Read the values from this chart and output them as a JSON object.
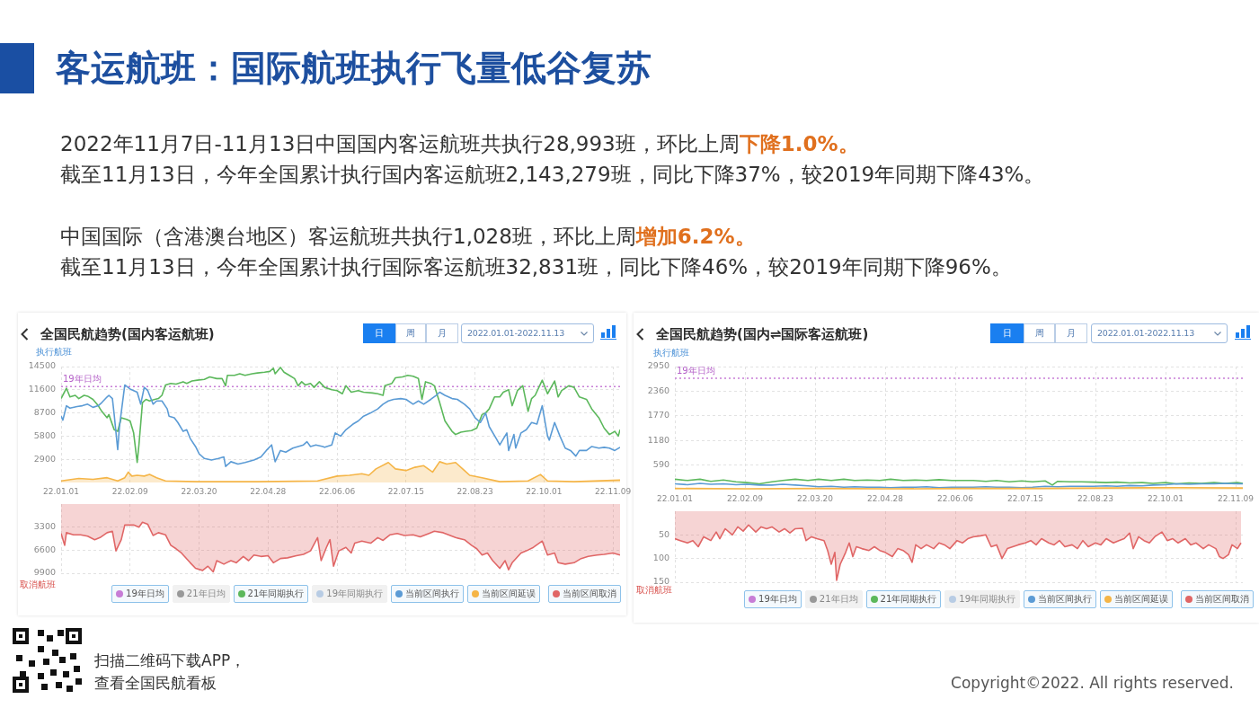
{
  "chart_data": [
    {
      "type": "other",
      "title": "客运航班：国际航班执行飞量低谷复苏",
      "annotations": [
        "2022年11月7日-11月13日中国国内客运航班共执行28,993班，环比上周",
        "下降1.0%。",
        "截至11月13日，今年全国累计执行国内客运航班2,143,279班，同比下降37%，较2019年同期下降43%。",
        "中国国际（含港澳台地区）客运航班共执行1,028班，环比上周",
        "增加6.2%。",
        "截至11月13日，今年全国累计执行国际客运航班32,831班，同比下降46%，较2019年同期下降96%。",
        "扫描二维码下载APP，",
        "查看全国民航看板",
        "Copyright©2022. All rights reserved."
      ]
    },
    {
      "type": "line",
      "title": "全国民航趋势(国内客运航班)",
      "ylabel": "执行航班",
      "annotations": [
        "日",
        "周",
        "月",
        "2022.01.01-2022.11.13",
        {
          "text": "19年日均",
          "x": "2022-01-02",
          "y": 12000
        }
      ],
      "xlim": [
        "2022-01-01",
        "2022-11-13"
      ],
      "xticks": [
        {
          "value": "2022-01-01",
          "label": "22.01.01"
        },
        {
          "value": "2022-02-09",
          "label": "22.02.09"
        },
        {
          "value": "2022-03-20",
          "label": "22.03.20"
        },
        {
          "value": "2022-04-28",
          "label": "22.04.28"
        },
        {
          "value": "2022-06-06",
          "label": "22.06.06"
        },
        {
          "value": "2022-07-15",
          "label": "22.07.15"
        },
        {
          "value": "2022-08-23",
          "label": "22.08.23"
        },
        {
          "value": "2022-10-01",
          "label": "22.10.01"
        },
        {
          "value": "2022-11-09",
          "label": "22.11.09"
        }
      ],
      "ylim": [
        0,
        14500
      ],
      "yticks": [
        2900,
        5800,
        8700,
        11600,
        14500
      ],
      "grid": true,
      "legend": "bottom right",
      "series": [
        {
          "name": "19年日均",
          "type": "line",
          "color": "#c77dd6",
          "line_style": "dotted",
          "x": [
            "2022-01-01",
            "2022-11-13"
          ],
          "values": [
            12000,
            12000
          ]
        },
        {
          "name": "21年日均",
          "type": "line",
          "color": "#999999"
        },
        {
          "name": "21年同期执行",
          "type": "line",
          "color": "#5cb85c",
          "x": [
            "2022-01-01",
            "2022-01-04",
            "2022-01-06",
            "2022-01-09",
            "2022-01-11",
            "2022-01-14",
            "2022-01-16",
            "2022-01-19",
            "2022-01-22",
            "2022-01-24",
            "2022-01-27",
            "2022-01-28",
            "2022-01-31",
            "2022-02-02",
            "2022-02-04",
            "2022-02-07",
            "2022-02-09",
            "2022-02-11",
            "2022-02-13",
            "2022-02-14",
            "2022-02-16",
            "2022-02-18",
            "2022-02-20",
            "2022-02-23",
            "2022-02-25",
            "2022-02-27",
            "2022-03-01",
            "2022-03-04",
            "2022-03-07",
            "2022-03-11",
            "2022-03-13",
            "2022-03-16",
            "2022-03-19",
            "2022-03-23",
            "2022-03-26",
            "2022-03-30",
            "2022-04-02",
            "2022-04-04",
            "2022-04-05",
            "2022-04-09",
            "2022-04-12",
            "2022-04-15",
            "2022-04-19",
            "2022-04-22",
            "2022-04-26",
            "2022-04-29",
            "2022-05-01",
            "2022-05-02",
            "2022-05-05",
            "2022-05-07",
            "2022-05-10",
            "2022-05-13",
            "2022-05-15",
            "2022-05-17",
            "2022-05-19",
            "2022-05-22",
            "2022-05-24",
            "2022-05-27",
            "2022-05-30",
            "2022-06-03",
            "2022-06-06",
            "2022-06-09",
            "2022-06-11",
            "2022-06-14",
            "2022-06-18",
            "2022-06-21",
            "2022-06-26",
            "2022-06-29",
            "2022-07-02",
            "2022-07-03",
            "2022-07-07",
            "2022-07-09",
            "2022-07-13",
            "2022-07-16",
            "2022-07-19",
            "2022-07-22",
            "2022-07-24",
            "2022-07-26",
            "2022-07-29",
            "2022-07-31",
            "2022-08-03",
            "2022-08-06",
            "2022-08-10",
            "2022-08-12",
            "2022-08-15",
            "2022-08-18",
            "2022-08-21",
            "2022-08-24",
            "2022-08-27",
            "2022-08-29",
            "2022-08-31",
            "2022-09-03",
            "2022-09-06",
            "2022-09-08",
            "2022-09-11",
            "2022-09-13",
            "2022-09-16",
            "2022-09-19",
            "2022-09-22",
            "2022-09-24",
            "2022-09-26",
            "2022-09-30",
            "2022-10-03",
            "2022-10-07",
            "2022-10-09",
            "2022-10-11",
            "2022-10-15",
            "2022-10-18",
            "2022-10-21",
            "2022-10-25",
            "2022-10-28",
            "2022-11-01",
            "2022-11-04",
            "2022-11-07",
            "2022-11-10",
            "2022-11-12",
            "2022-11-13"
          ],
          "values": [
            10500,
            11800,
            10700,
            10900,
            10500,
            10900,
            10800,
            10400,
            9600,
            8900,
            8100,
            8500,
            6600,
            6400,
            8100,
            7900,
            7700,
            6200,
            2500,
            4700,
            10000,
            10400,
            10200,
            10400,
            10500,
            10900,
            12200,
            12400,
            12300,
            12600,
            12400,
            12700,
            12800,
            12900,
            13200,
            13000,
            13000,
            12100,
            13400,
            13400,
            13600,
            13400,
            13600,
            13700,
            13800,
            13900,
            14300,
            13600,
            14400,
            13800,
            13400,
            13000,
            12100,
            12600,
            12200,
            12400,
            11900,
            12600,
            11900,
            11600,
            11500,
            11100,
            12100,
            11300,
            11500,
            11300,
            11200,
            11100,
            10900,
            12100,
            12400,
            13100,
            13200,
            13400,
            13300,
            13000,
            10400,
            12600,
            12400,
            12100,
            10000,
            7700,
            6400,
            6000,
            6300,
            6400,
            6500,
            6800,
            8500,
            8700,
            9200,
            10700,
            10700,
            11300,
            11600,
            9600,
            11500,
            12100,
            8900,
            10500,
            10900,
            12800,
            11100,
            12700,
            10700,
            11500,
            12100,
            11900,
            10700,
            10400,
            9200,
            8100,
            6800,
            6000,
            6400,
            5800,
            6600
          ]
        },
        {
          "name": "19年同期执行",
          "type": "line",
          "color": "#b8cce4"
        },
        {
          "name": "当前区间执行",
          "type": "line",
          "color": "#5b9bd5",
          "x": [
            "2022-01-01",
            "2022-01-02",
            "2022-01-04",
            "2022-01-06",
            "2022-01-10",
            "2022-01-13",
            "2022-01-16",
            "2022-01-19",
            "2022-01-22",
            "2022-01-24",
            "2022-01-27",
            "2022-01-28",
            "2022-01-30",
            "2022-01-31",
            "2022-02-02",
            "2022-02-03",
            "2022-02-06",
            "2022-02-09",
            "2022-02-13",
            "2022-02-15",
            "2022-02-17",
            "2022-02-19",
            "2022-02-22",
            "2022-02-24",
            "2022-02-27",
            "2022-03-02",
            "2022-03-03",
            "2022-03-06",
            "2022-03-08",
            "2022-03-11",
            "2022-03-13",
            "2022-03-15",
            "2022-03-18",
            "2022-03-20",
            "2022-03-23",
            "2022-03-27",
            "2022-03-31",
            "2022-04-03",
            "2022-04-04",
            "2022-04-07",
            "2022-04-11",
            "2022-04-15",
            "2022-04-20",
            "2022-04-24",
            "2022-04-27",
            "2022-04-30",
            "2022-05-02",
            "2022-05-05",
            "2022-05-08",
            "2022-05-12",
            "2022-05-15",
            "2022-05-18",
            "2022-05-20",
            "2022-05-22",
            "2022-05-25",
            "2022-05-29",
            "2022-05-30",
            "2022-06-03",
            "2022-06-05",
            "2022-06-08",
            "2022-06-11",
            "2022-06-15",
            "2022-06-18",
            "2022-06-21",
            "2022-06-25",
            "2022-06-29",
            "2022-07-02",
            "2022-07-05",
            "2022-07-08",
            "2022-07-12",
            "2022-07-15",
            "2022-07-19",
            "2022-07-22",
            "2022-07-25",
            "2022-07-29",
            "2022-08-01",
            "2022-08-03",
            "2022-08-06",
            "2022-08-10",
            "2022-08-13",
            "2022-08-17",
            "2022-08-20",
            "2022-08-23",
            "2022-08-26",
            "2022-08-29",
            "2022-08-31",
            "2022-09-04",
            "2022-09-06",
            "2022-09-10",
            "2022-09-11",
            "2022-09-14",
            "2022-09-15",
            "2022-09-18",
            "2022-09-21",
            "2022-09-24",
            "2022-09-27",
            "2022-09-30",
            "2022-10-03",
            "2022-10-04",
            "2022-10-07",
            "2022-10-10",
            "2022-10-13",
            "2022-10-16",
            "2022-10-19",
            "2022-10-21",
            "2022-10-25",
            "2022-10-28",
            "2022-11-01",
            "2022-11-04",
            "2022-11-07",
            "2022-11-10",
            "2022-11-13"
          ],
          "values": [
            8300,
            7800,
            9600,
            9300,
            9500,
            9600,
            9800,
            9400,
            9600,
            10000,
            10700,
            10900,
            10500,
            8500,
            4100,
            7000,
            12200,
            11700,
            11300,
            9800,
            11900,
            11500,
            9800,
            10200,
            10200,
            9200,
            8300,
            8100,
            7500,
            6400,
            6600,
            5500,
            4500,
            3600,
            3000,
            2800,
            3000,
            3200,
            2000,
            2600,
            2300,
            2500,
            2800,
            3200,
            4000,
            4700,
            2600,
            4000,
            3800,
            4300,
            4500,
            4700,
            5100,
            4500,
            4700,
            4500,
            4400,
            4700,
            6200,
            5800,
            6600,
            7300,
            7700,
            8300,
            8700,
            9200,
            9800,
            10200,
            10400,
            10500,
            10400,
            9800,
            10200,
            9800,
            10400,
            10900,
            11300,
            10900,
            10500,
            10400,
            9800,
            9200,
            8100,
            7500,
            8700,
            7000,
            5500,
            4700,
            6200,
            4000,
            6000,
            4300,
            6200,
            6600,
            7500,
            7300,
            9600,
            5800,
            5300,
            7500,
            5800,
            4300,
            4000,
            3300,
            4000,
            4000,
            4500,
            4300,
            4400,
            4300,
            4000,
            4400
          ]
        },
        {
          "name": "当前区间延误",
          "type": "area",
          "color": "#f5b547",
          "x": [
            "2022-01-01",
            "2022-01-11",
            "2022-01-19",
            "2022-01-27",
            "2022-02-02",
            "2022-02-06",
            "2022-02-08",
            "2022-02-10",
            "2022-02-13",
            "2022-02-17",
            "2022-02-20",
            "2022-02-24",
            "2022-03-01",
            "2022-03-19",
            "2022-04-22",
            "2022-05-26",
            "2022-06-06",
            "2022-06-13",
            "2022-06-20",
            "2022-06-24",
            "2022-06-28",
            "2022-07-05",
            "2022-07-09",
            "2022-07-15",
            "2022-07-20",
            "2022-07-25",
            "2022-07-30",
            "2022-08-03",
            "2022-08-07",
            "2022-08-12",
            "2022-08-17",
            "2022-08-20",
            "2022-08-27",
            "2022-09-06",
            "2022-09-22",
            "2022-09-29",
            "2022-10-03",
            "2022-10-18",
            "2022-11-13"
          ],
          "values": [
            200,
            500,
            400,
            600,
            200,
            600,
            1300,
            800,
            900,
            800,
            1000,
            600,
            200,
            100,
            100,
            200,
            800,
            900,
            1100,
            900,
            1700,
            2500,
            1700,
            1500,
            1900,
            2100,
            1300,
            2600,
            2300,
            2500,
            1500,
            900,
            600,
            100,
            200,
            1000,
            200,
            100,
            300
          ]
        }
      ]
    },
    {
      "type": "line",
      "ylabel": "取消航班",
      "xlim": [
        "2022-01-01",
        "2022-11-13"
      ],
      "xticks": [
        {
          "value": "2022-01-01",
          "label": null
        },
        {
          "value": "2022-02-09",
          "label": null
        },
        {
          "value": "2022-03-20",
          "label": null
        },
        {
          "value": "2022-04-28",
          "label": null
        },
        {
          "value": "2022-06-06",
          "label": null
        },
        {
          "value": "2022-07-15",
          "label": null
        },
        {
          "value": "2022-08-23",
          "label": null
        },
        {
          "value": "2022-10-01",
          "label": null
        },
        {
          "value": "2022-11-09",
          "label": null
        }
      ],
      "tick_labels": "y",
      "ylim": [
        9900,
        0
      ],
      "yticks": [
        3300,
        6600,
        9900
      ],
      "grid": true,
      "legend": "bottom right",
      "series": [
        {
          "name": "当前区间取消",
          "type": "area",
          "color": "#e06666",
          "x": [
            "2022-01-01",
            "2022-01-03",
            "2022-01-04",
            "2022-01-08",
            "2022-01-12",
            "2022-01-16",
            "2022-01-20",
            "2022-01-23",
            "2022-01-27",
            "2022-01-30",
            "2022-02-01",
            "2022-02-04",
            "2022-02-06",
            "2022-02-11",
            "2022-02-14",
            "2022-02-16",
            "2022-02-19",
            "2022-02-22",
            "2022-02-25",
            "2022-03-01",
            "2022-03-04",
            "2022-03-07",
            "2022-03-10",
            "2022-03-15",
            "2022-03-18",
            "2022-03-22",
            "2022-03-25",
            "2022-03-28",
            "2022-03-30",
            "2022-04-03",
            "2022-04-07",
            "2022-04-10",
            "2022-04-14",
            "2022-04-17",
            "2022-04-20",
            "2022-04-24",
            "2022-04-28",
            "2022-05-01",
            "2022-05-05",
            "2022-05-09",
            "2022-05-14",
            "2022-05-18",
            "2022-05-22",
            "2022-05-26",
            "2022-05-28",
            "2022-05-31",
            "2022-06-02",
            "2022-06-04",
            "2022-06-07",
            "2022-06-11",
            "2022-06-14",
            "2022-06-16",
            "2022-06-20",
            "2022-06-25",
            "2022-06-29",
            "2022-07-02",
            "2022-07-06",
            "2022-07-10",
            "2022-07-14",
            "2022-07-19",
            "2022-07-23",
            "2022-07-28",
            "2022-07-31",
            "2022-08-05",
            "2022-08-08",
            "2022-08-12",
            "2022-08-17",
            "2022-08-21",
            "2022-08-24",
            "2022-08-27",
            "2022-08-30",
            "2022-09-02",
            "2022-09-06",
            "2022-09-09",
            "2022-09-11",
            "2022-09-13",
            "2022-09-18",
            "2022-09-21",
            "2022-09-25",
            "2022-09-30",
            "2022-10-03",
            "2022-10-07",
            "2022-10-09",
            "2022-10-13",
            "2022-10-18",
            "2022-10-22",
            "2022-10-26",
            "2022-10-31",
            "2022-11-04",
            "2022-11-09",
            "2022-11-13"
          ],
          "values": [
            4200,
            5900,
            4100,
            4400,
            4400,
            4600,
            5100,
            4800,
            4100,
            3900,
            6700,
            5100,
            3000,
            3000,
            3300,
            2600,
            2900,
            4500,
            4100,
            4400,
            5900,
            6400,
            7000,
            8400,
            9200,
            9500,
            8900,
            9700,
            8100,
            8600,
            8100,
            8400,
            7500,
            8100,
            7300,
            7500,
            7400,
            8400,
            7800,
            7700,
            7400,
            7200,
            6700,
            4800,
            8100,
            6200,
            5100,
            8900,
            6700,
            6200,
            7000,
            5600,
            5300,
            5600,
            4800,
            5200,
            4400,
            4200,
            4500,
            4400,
            4700,
            4200,
            3900,
            4100,
            4400,
            4800,
            5100,
            5900,
            6400,
            7300,
            7000,
            8100,
            9200,
            8100,
            9400,
            8400,
            7000,
            6700,
            6200,
            5300,
            7300,
            7000,
            8400,
            8600,
            8400,
            7800,
            7500,
            7300,
            7200,
            7000,
            7300
          ]
        }
      ]
    },
    {
      "type": "line",
      "title": "全国民航趋势(国内⇌国际客运航班)",
      "ylabel": "执行航班",
      "annotations": [
        "日",
        "周",
        "月",
        "2022.01.01-2022.11.13",
        {
          "text": "19年日均",
          "x": "2022-01-02",
          "y": 2670
        }
      ],
      "xlim": [
        "2022-01-01",
        "2022-11-13"
      ],
      "xticks": [
        {
          "value": "2022-01-01",
          "label": "22.01.01"
        },
        {
          "value": "2022-02-09",
          "label": "22.02.09"
        },
        {
          "value": "2022-03-20",
          "label": "22.03.20"
        },
        {
          "value": "2022-04-28",
          "label": "22.04.28"
        },
        {
          "value": "2022-06-06",
          "label": "22.06.06"
        },
        {
          "value": "2022-07-15",
          "label": "22.07.15"
        },
        {
          "value": "2022-08-23",
          "label": "22.08.23"
        },
        {
          "value": "2022-10-01",
          "label": "22.10.01"
        },
        {
          "value": "2022-11-09",
          "label": "22.11.09"
        }
      ],
      "ylim": [
        0,
        2950
      ],
      "yticks": [
        590,
        1180,
        1770,
        2360,
        2950
      ],
      "grid": true,
      "legend": "bottom right",
      "series": [
        {
          "name": "19年日均",
          "type": "line",
          "color": "#c77dd6",
          "line_style": "dotted",
          "x": [
            "2022-01-01",
            "2022-11-13"
          ],
          "values": [
            2670,
            2670
          ]
        },
        {
          "name": "21年日均",
          "type": "line",
          "color": "#999999"
        },
        {
          "name": "21年同期执行",
          "type": "line",
          "color": "#5cb85c",
          "x": [
            "2022-01-01",
            "2022-01-08",
            "2022-01-15",
            "2022-01-21",
            "2022-01-28",
            "2022-02-04",
            "2022-02-10",
            "2022-02-17",
            "2022-02-24",
            "2022-03-02",
            "2022-03-09",
            "2022-03-16",
            "2022-03-22",
            "2022-03-29",
            "2022-04-05",
            "2022-04-11",
            "2022-04-18",
            "2022-04-25",
            "2022-05-01",
            "2022-05-08",
            "2022-05-15",
            "2022-05-21",
            "2022-05-28",
            "2022-06-04",
            "2022-06-10",
            "2022-06-16",
            "2022-06-23",
            "2022-06-29",
            "2022-07-06",
            "2022-07-13",
            "2022-07-19",
            "2022-07-26",
            "2022-07-30",
            "2022-08-02",
            "2022-08-09",
            "2022-08-15",
            "2022-08-22",
            "2022-08-29",
            "2022-09-04",
            "2022-09-11",
            "2022-09-18",
            "2022-09-24",
            "2022-10-01",
            "2022-10-07",
            "2022-10-14",
            "2022-10-21",
            "2022-10-28",
            "2022-11-03",
            "2022-11-10",
            "2022-11-13"
          ],
          "values": [
            250,
            220,
            250,
            200,
            230,
            190,
            170,
            140,
            190,
            220,
            250,
            220,
            250,
            220,
            250,
            220,
            230,
            220,
            250,
            220,
            230,
            220,
            240,
            220,
            220,
            220,
            200,
            220,
            190,
            210,
            190,
            210,
            110,
            200,
            190,
            190,
            180,
            170,
            180,
            160,
            170,
            150,
            170,
            140,
            160,
            150,
            170,
            150,
            170,
            150
          ]
        },
        {
          "name": "19年同期执行",
          "type": "line",
          "color": "#b8cce4"
        },
        {
          "name": "当前区间执行",
          "type": "line",
          "color": "#5b9bd5",
          "x": [
            "2022-01-01",
            "2022-01-08",
            "2022-01-15",
            "2022-01-21",
            "2022-01-28",
            "2022-02-04",
            "2022-02-10",
            "2022-02-17",
            "2022-02-24",
            "2022-03-02",
            "2022-03-09",
            "2022-03-16",
            "2022-03-22",
            "2022-03-29",
            "2022-04-05",
            "2022-04-11",
            "2022-04-18",
            "2022-04-25",
            "2022-05-01",
            "2022-05-08",
            "2022-05-15",
            "2022-05-21",
            "2022-05-28",
            "2022-06-04",
            "2022-06-10",
            "2022-06-16",
            "2022-06-23",
            "2022-06-29",
            "2022-07-06",
            "2022-07-13",
            "2022-07-19",
            "2022-07-26",
            "2022-08-02",
            "2022-08-09",
            "2022-08-15",
            "2022-08-22",
            "2022-08-29",
            "2022-09-04",
            "2022-09-11",
            "2022-09-18",
            "2022-09-24",
            "2022-10-01",
            "2022-10-07",
            "2022-10-14",
            "2022-10-21",
            "2022-10-28",
            "2022-11-03",
            "2022-11-10",
            "2022-11-13"
          ],
          "values": [
            140,
            120,
            150,
            130,
            140,
            120,
            130,
            110,
            110,
            130,
            110,
            90,
            70,
            80,
            60,
            70,
            60,
            60,
            50,
            60,
            60,
            70,
            50,
            60,
            60,
            60,
            70,
            60,
            60,
            50,
            60,
            80,
            70,
            80,
            80,
            80,
            90,
            80,
            100,
            90,
            110,
            120,
            140,
            130,
            140,
            140,
            150,
            140,
            140
          ]
        },
        {
          "name": "当前区间延误",
          "type": "area",
          "color": "#f5b547",
          "x": [
            "2022-01-01",
            "2022-02-10",
            "2022-03-22",
            "2022-05-01",
            "2022-06-10",
            "2022-07-20",
            "2022-08-29",
            "2022-10-08",
            "2022-11-13"
          ],
          "values": [
            30,
            20,
            30,
            20,
            30,
            30,
            40,
            50,
            40
          ]
        }
      ]
    },
    {
      "type": "line",
      "ylabel": "取消航班",
      "xlim": [
        "2022-01-01",
        "2022-11-13"
      ],
      "xticks": [
        {
          "value": "2022-01-01",
          "label": null
        },
        {
          "value": "2022-02-09",
          "label": null
        },
        {
          "value": "2022-03-20",
          "label": null
        },
        {
          "value": "2022-04-28",
          "label": null
        },
        {
          "value": "2022-06-06",
          "label": null
        },
        {
          "value": "2022-07-15",
          "label": null
        },
        {
          "value": "2022-08-23",
          "label": null
        },
        {
          "value": "2022-10-01",
          "label": null
        },
        {
          "value": "2022-11-09",
          "label": null
        }
      ],
      "tick_labels": "y",
      "ylim": [
        150,
        0
      ],
      "yticks": [
        50,
        100,
        150
      ],
      "grid": true,
      "legend": "bottom right",
      "series": [
        {
          "name": "当前区间取消",
          "type": "area",
          "color": "#e06666",
          "x": [
            "2022-01-01",
            "2022-01-04",
            "2022-01-08",
            "2022-01-11",
            "2022-01-14",
            "2022-01-17",
            "2022-01-21",
            "2022-01-24",
            "2022-01-26",
            "2022-01-29",
            "2022-02-02",
            "2022-02-05",
            "2022-02-08",
            "2022-02-11",
            "2022-02-15",
            "2022-02-18",
            "2022-02-21",
            "2022-02-24",
            "2022-02-28",
            "2022-03-03",
            "2022-03-06",
            "2022-03-09",
            "2022-03-13",
            "2022-03-15",
            "2022-03-18",
            "2022-03-21",
            "2022-03-25",
            "2022-03-27",
            "2022-03-29",
            "2022-03-31",
            "2022-04-01",
            "2022-04-03",
            "2022-04-06",
            "2022-04-08",
            "2022-04-10",
            "2022-04-12",
            "2022-04-15",
            "2022-04-19",
            "2022-04-22",
            "2022-04-25",
            "2022-04-28",
            "2022-05-02",
            "2022-05-05",
            "2022-05-08",
            "2022-05-11",
            "2022-05-13",
            "2022-05-15",
            "2022-05-18",
            "2022-05-21",
            "2022-05-25",
            "2022-05-28",
            "2022-05-31",
            "2022-06-03",
            "2022-06-07",
            "2022-06-10",
            "2022-06-13",
            "2022-06-16",
            "2022-06-20",
            "2022-06-23",
            "2022-06-26",
            "2022-06-29",
            "2022-07-02",
            "2022-07-05",
            "2022-07-08",
            "2022-07-11",
            "2022-07-15",
            "2022-07-18",
            "2022-07-21",
            "2022-07-24",
            "2022-07-28",
            "2022-07-31",
            "2022-08-03",
            "2022-08-06",
            "2022-08-10",
            "2022-08-13",
            "2022-08-16",
            "2022-08-19",
            "2022-08-23",
            "2022-08-26",
            "2022-08-29",
            "2022-09-02",
            "2022-09-05",
            "2022-09-08",
            "2022-09-11",
            "2022-09-13",
            "2022-09-16",
            "2022-09-19",
            "2022-09-22",
            "2022-09-25",
            "2022-09-29",
            "2022-10-02",
            "2022-10-05",
            "2022-10-08",
            "2022-10-12",
            "2022-10-15",
            "2022-10-18",
            "2022-10-22",
            "2022-10-25",
            "2022-10-29",
            "2022-10-31",
            "2022-11-02",
            "2022-11-05",
            "2022-11-07",
            "2022-11-10",
            "2022-11-12"
          ],
          "values": [
            58,
            62,
            67,
            62,
            75,
            54,
            62,
            44,
            58,
            37,
            50,
            33,
            42,
            29,
            44,
            33,
            37,
            33,
            44,
            37,
            46,
            37,
            36,
            62,
            54,
            58,
            62,
            83,
            112,
            87,
            146,
            112,
            87,
            67,
            96,
            75,
            79,
            83,
            75,
            83,
            87,
            96,
            79,
            83,
            92,
            108,
            71,
            79,
            71,
            79,
            67,
            71,
            79,
            62,
            67,
            58,
            54,
            52,
            50,
            75,
            71,
            100,
            79,
            75,
            71,
            67,
            62,
            71,
            58,
            67,
            71,
            62,
            75,
            71,
            79,
            62,
            75,
            67,
            71,
            58,
            67,
            62,
            58,
            46,
            79,
            54,
            62,
            67,
            54,
            44,
            62,
            58,
            67,
            58,
            71,
            67,
            79,
            71,
            79,
            96,
            100,
            92,
            71,
            79,
            67
          ]
        }
      ]
    }
  ]
}
